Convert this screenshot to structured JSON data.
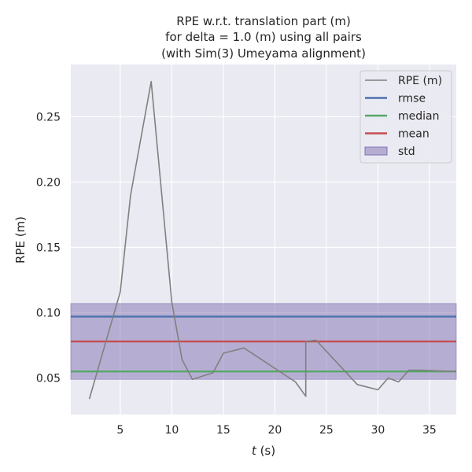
{
  "chart_data": {
    "type": "line",
    "title_lines": [
      "RPE w.r.t. translation part (m)",
      "for delta = 1.0 (m) using all pairs",
      "(with Sim(3) Umeyama alignment)"
    ],
    "xlabel_italic": "t",
    "xlabel_rest": " (s)",
    "ylabel": "RPE (m)",
    "xlim": [
      0.2,
      37.6
    ],
    "ylim": [
      0.022,
      0.29
    ],
    "xticks": [
      5,
      10,
      15,
      20,
      25,
      30,
      35
    ],
    "yticks": [
      0.05,
      0.1,
      0.15,
      0.2,
      0.25
    ],
    "ytick_labels": [
      "0.05",
      "0.10",
      "0.15",
      "0.20",
      "0.25"
    ],
    "grid": true,
    "legend_position": "top-right",
    "series": [
      {
        "name": "RPE (m)",
        "color": "#808080",
        "x": [
          2,
          5,
          6,
          8,
          10,
          11,
          12,
          14,
          15,
          17,
          22,
          23,
          23,
          24,
          28,
          30,
          31,
          32,
          33,
          34,
          37.6
        ],
        "y": [
          0.034,
          0.116,
          0.19,
          0.277,
          0.108,
          0.064,
          0.049,
          0.054,
          0.069,
          0.073,
          0.047,
          0.036,
          0.078,
          0.079,
          0.045,
          0.041,
          0.05,
          0.047,
          0.056,
          0.056,
          0.055
        ]
      }
    ],
    "reference_lines": [
      {
        "name": "rmse",
        "color": "#4c72b0",
        "y": 0.097
      },
      {
        "name": "median",
        "color": "#55a868",
        "y": 0.055
      },
      {
        "name": "mean",
        "color": "#c44e52",
        "y": 0.078
      }
    ],
    "band": {
      "name": "std",
      "color": "#8172b2",
      "y_low": 0.049,
      "y_high": 0.107
    },
    "colors": {
      "background": "#eaeaf2",
      "grid": "#ffffff"
    }
  }
}
